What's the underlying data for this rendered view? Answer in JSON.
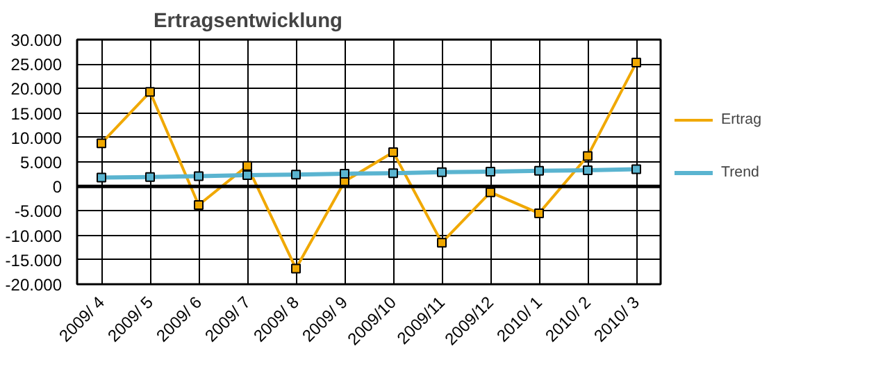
{
  "chart_data": {
    "type": "line",
    "title": "Ertragsentwicklung",
    "categories": [
      "2009/ 4",
      "2009/ 5",
      "2009/ 6",
      "2009/ 7",
      "2009/ 8",
      "2009/ 9",
      "2009/10",
      "2009/11",
      "2009/12",
      "2010/ 1",
      "2010/ 2",
      "2010/ 3"
    ],
    "series": [
      {
        "name": "Ertrag",
        "color": "#f0a800",
        "values": [
          8800,
          19300,
          -3800,
          4200,
          -16800,
          1000,
          7000,
          -11500,
          -1200,
          -5500,
          6200,
          25300
        ]
      },
      {
        "name": "Trend",
        "color": "#5ab4d0",
        "values": [
          1800,
          1900,
          2100,
          2300,
          2400,
          2600,
          2700,
          2900,
          3000,
          3200,
          3300,
          3500
        ]
      }
    ],
    "ylim": [
      -20000,
      30000
    ],
    "yticks": [
      {
        "value": -20000,
        "label": "-20.000"
      },
      {
        "value": -15000,
        "label": "-15.000"
      },
      {
        "value": -10000,
        "label": "-10.000"
      },
      {
        "value": -5000,
        "label": "-5.000"
      },
      {
        "value": 0,
        "label": "0"
      },
      {
        "value": 5000,
        "label": "5.000"
      },
      {
        "value": 10000,
        "label": "10.000"
      },
      {
        "value": 15000,
        "label": "15.000"
      },
      {
        "value": 20000,
        "label": "20.000"
      },
      {
        "value": 25000,
        "label": "25.000"
      },
      {
        "value": 30000,
        "label": "30.000"
      }
    ],
    "ref_lines": [
      {
        "axis": "y",
        "value": 0,
        "color": "#000000"
      }
    ],
    "grid": true,
    "legend": "right",
    "marker": "square",
    "line_style": "solid"
  }
}
